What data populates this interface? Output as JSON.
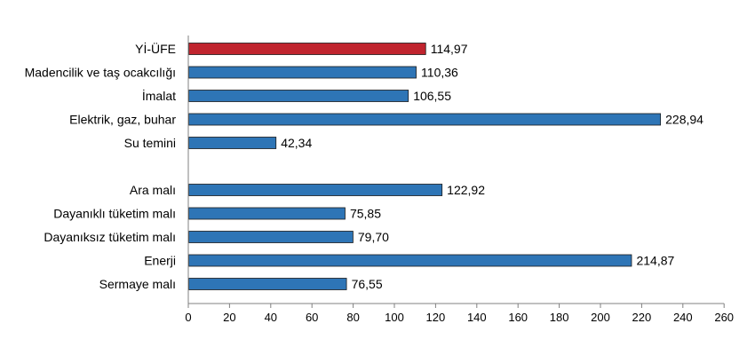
{
  "chart_data": {
    "type": "bar",
    "orientation": "horizontal",
    "title": "",
    "xlabel": "",
    "ylabel": "",
    "xlim": [
      0,
      260
    ],
    "xticks": [
      0,
      20,
      40,
      60,
      80,
      100,
      120,
      140,
      160,
      180,
      200,
      220,
      240,
      260
    ],
    "grid": false,
    "legend": "none",
    "colors": {
      "highlight": "#C0242E",
      "default": "#2E75B6"
    },
    "groups": [
      {
        "items": [
          {
            "category": "Yİ-ÜFE",
            "value": 114.97,
            "label": "114,97",
            "highlight": true
          },
          {
            "category": "Madencilik ve taş ocakcılığı",
            "value": 110.36,
            "label": "110,36"
          },
          {
            "category": "İmalat",
            "value": 106.55,
            "label": "106,55"
          },
          {
            "category": "Elektrik, gaz, buhar",
            "value": 228.94,
            "label": "228,94"
          },
          {
            "category": "Su temini",
            "value": 42.34,
            "label": "42,34"
          }
        ]
      },
      {
        "items": [
          {
            "category": "Ara malı",
            "value": 122.92,
            "label": "122,92"
          },
          {
            "category": "Dayanıklı tüketim malı",
            "value": 75.85,
            "label": "75,85"
          },
          {
            "category": "Dayanıksız tüketim malı",
            "value": 79.7,
            "label": "79,70"
          },
          {
            "category": "Enerji",
            "value": 214.87,
            "label": "214,87"
          },
          {
            "category": "Sermaye malı",
            "value": 76.55,
            "label": "76,55"
          }
        ]
      }
    ]
  }
}
